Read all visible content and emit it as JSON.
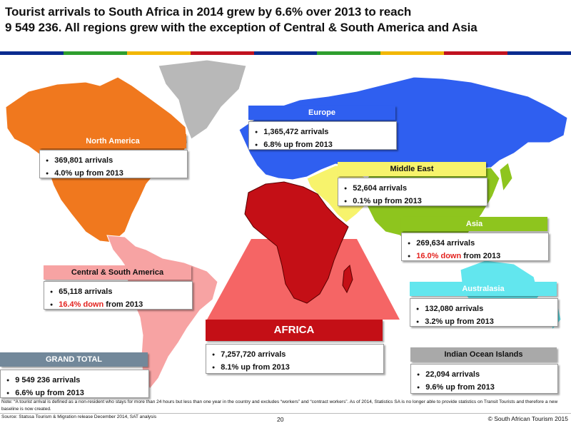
{
  "title_line1": "Tourist arrivals to South Africa in 2014 grew by 6.6% over 2013 to reach",
  "title_line2": "9 549 236. All regions grew with the exception of Central & South America and Asia",
  "stripe_colors": [
    "#0a2c8f",
    "#2e9e2e",
    "#f2b705",
    "#c1121f",
    "#0a2c8f",
    "#2e9e2e",
    "#f2b705",
    "#c1121f",
    "#0a2c8f"
  ],
  "regions": {
    "europe": {
      "name": "Europe",
      "arrivals": "1,365,472 arrivals",
      "change_prefix": "",
      "change_highlight": "",
      "change_text": "6.8% up from 2013",
      "color": "#2f5ff0"
    },
    "north_america": {
      "name": "North America",
      "arrivals": "369,801 arrivals",
      "change_prefix": "",
      "change_highlight": "",
      "change_text": "4.0% up from 2013",
      "color": "#f0781e"
    },
    "middle_east": {
      "name": "Middle East",
      "arrivals": "52,604 arrivals",
      "change_prefix": "",
      "change_highlight": "",
      "change_text": "0.1% up from 2013",
      "color": "#f7f36c"
    },
    "asia": {
      "name": "Asia",
      "arrivals": "269,634 arrivals",
      "change_highlight": "16.0% down",
      "change_text": " from 2013",
      "color": "#8ec51e"
    },
    "central_south_america": {
      "name": "Central & South America",
      "arrivals": "65,118 arrivals",
      "change_highlight": "16.4% down",
      "change_text": " from 2013",
      "color": "#f7a3a3"
    },
    "australasia": {
      "name": "Australasia",
      "arrivals": "132,080 arrivals",
      "change_prefix": "",
      "change_highlight": "",
      "change_text": "3.2% up from 2013",
      "color": "#62e6ee"
    },
    "africa": {
      "name": "AFRICA",
      "arrivals": "7,257,720 arrivals",
      "change_prefix": "",
      "change_highlight": "",
      "change_text": "8.1% up from 2013",
      "color": "#c40f16"
    },
    "indian_ocean": {
      "name": "Indian Ocean Islands",
      "arrivals": "22,094 arrivals",
      "change_prefix": "",
      "change_highlight": "",
      "change_text": "9.6% up from 2013",
      "color": "#a9a9a9"
    },
    "grand_total": {
      "name": "GRAND TOTAL",
      "arrivals": "9 549 236 arrivals",
      "change_prefix": "",
      "change_highlight": "",
      "change_text": "6.6% up from 2013",
      "color": "#72889a"
    }
  },
  "note": "Note: “A tourist arrival is defined as a non-resident who stays for more than 24 hours but less than one year in the country and excludes “workers” and “contract workers”. As of 2014, Statistics SA is no longer able to provide statistics on Transit Tourists and therefore a new baseline is now created.",
  "source": "Source: Statssa Tourism & Migration release December 2014, SAT analysis",
  "page_number": "20",
  "copyright": "© South African Tourism 2015"
}
